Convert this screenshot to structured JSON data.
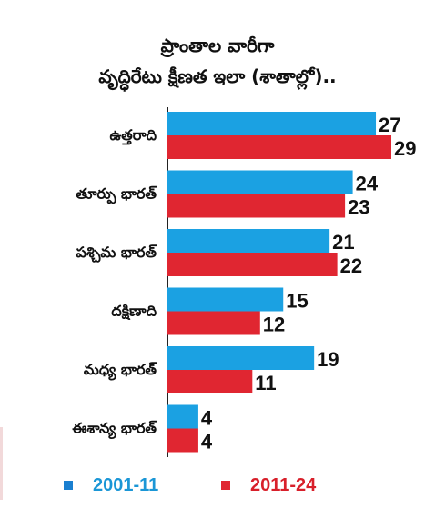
{
  "chart_data": {
    "type": "bar",
    "orientation": "horizontal",
    "title": "ప్రాంతాల వారీగా",
    "subtitle": "వృద్ధిరేటు క్షీణత ఇలా (శాతాల్లో)..",
    "categories": [
      "ఉత్తరాది",
      "తూర్పు భారత్",
      "పశ్చిమ భారత్",
      "దక్షిణాది",
      "మధ్య భారత్",
      "ఈశాన్య భారత్"
    ],
    "series": [
      {
        "name": "2001-11",
        "color": "#1ba1e2",
        "values": [
          27,
          24,
          21,
          15,
          19,
          4
        ]
      },
      {
        "name": "2011-24",
        "color": "#e02631",
        "values": [
          29,
          23,
          22,
          12,
          11,
          4
        ]
      }
    ],
    "xlim": [
      0,
      29
    ],
    "grid": false,
    "legend_position": "bottom"
  }
}
